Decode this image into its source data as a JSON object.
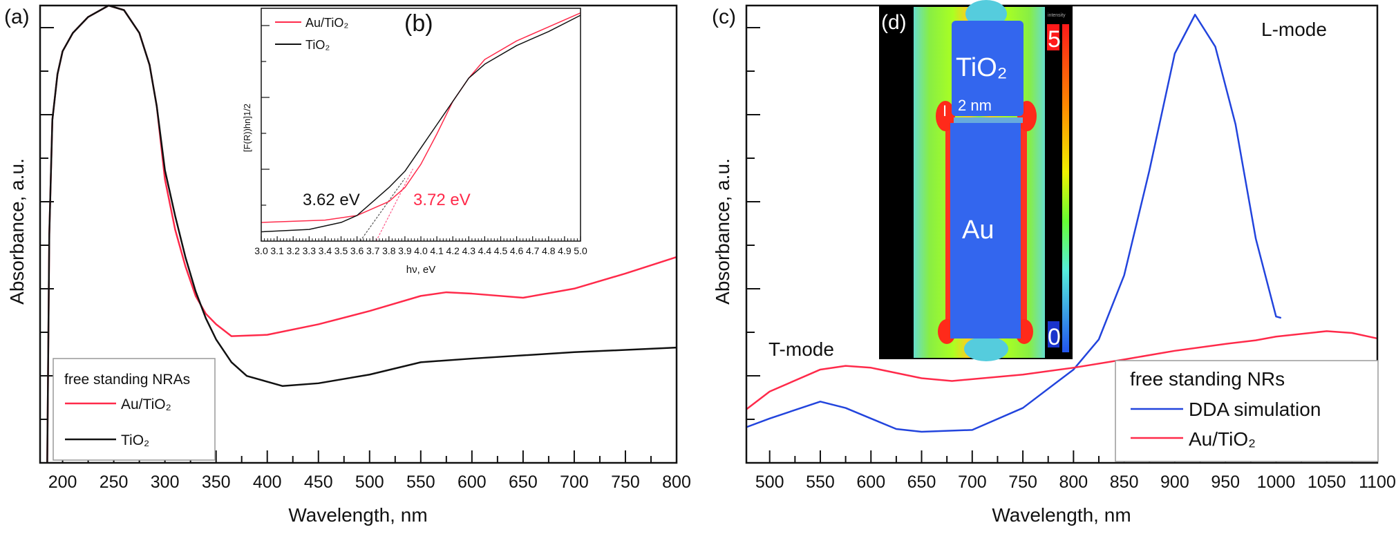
{
  "chart_data": [
    {
      "panel": "(a)",
      "type": "line",
      "xlabel": "Wavelength, nm",
      "ylabel": "Absorbance, a.u.",
      "xlim": [
        178,
        800
      ],
      "ylim": [
        0,
        1
      ],
      "x_ticks": [
        "200",
        "250",
        "300",
        "350",
        "400",
        "450",
        "500",
        "550",
        "600",
        "650",
        "700",
        "750",
        "800"
      ],
      "grid": false,
      "legend": {
        "title": "free standing NRAs",
        "placement": "bottom-left"
      },
      "series": [
        {
          "name": "Au/TiO₂",
          "color": "#ff2a4a",
          "points": [
            [
              185,
              0
            ],
            [
              187,
              0.5
            ],
            [
              190,
              0.75
            ],
            [
              195,
              0.85
            ],
            [
              200,
              0.9
            ],
            [
              210,
              0.94
            ],
            [
              225,
              0.975
            ],
            [
              245,
              1.0
            ],
            [
              260,
              0.99
            ],
            [
              275,
              0.94
            ],
            [
              285,
              0.87
            ],
            [
              292,
              0.78
            ],
            [
              300,
              0.62
            ],
            [
              310,
              0.51
            ],
            [
              320,
              0.43
            ],
            [
              330,
              0.365
            ],
            [
              340,
              0.326
            ],
            [
              350,
              0.303
            ],
            [
              365,
              0.277
            ],
            [
              400,
              0.28
            ],
            [
              450,
              0.303
            ],
            [
              500,
              0.332
            ],
            [
              550,
              0.365
            ],
            [
              575,
              0.373
            ],
            [
              600,
              0.37
            ],
            [
              650,
              0.361
            ],
            [
              700,
              0.381
            ],
            [
              750,
              0.414
            ],
            [
              800,
              0.45
            ]
          ]
        },
        {
          "name": "TiO₂",
          "color": "#111111",
          "points": [
            [
              185,
              0
            ],
            [
              187,
              0.5
            ],
            [
              190,
              0.75
            ],
            [
              195,
              0.85
            ],
            [
              200,
              0.9
            ],
            [
              210,
              0.94
            ],
            [
              225,
              0.975
            ],
            [
              245,
              1.0
            ],
            [
              260,
              0.99
            ],
            [
              275,
              0.94
            ],
            [
              285,
              0.87
            ],
            [
              292,
              0.78
            ],
            [
              300,
              0.64
            ],
            [
              310,
              0.54
            ],
            [
              320,
              0.45
            ],
            [
              330,
              0.375
            ],
            [
              340,
              0.316
            ],
            [
              350,
              0.27
            ],
            [
              365,
              0.22
            ],
            [
              380,
              0.19
            ],
            [
              415,
              0.168
            ],
            [
              450,
              0.174
            ],
            [
              500,
              0.193
            ],
            [
              550,
              0.22
            ],
            [
              600,
              0.228
            ],
            [
              700,
              0.242
            ],
            [
              800,
              0.252
            ]
          ]
        }
      ]
    },
    {
      "panel": "(b)",
      "type": "line",
      "inset": true,
      "xlabel": "hν, eV",
      "ylabel": "[F(R))hn]1/2",
      "xlim": [
        3.0,
        5.0
      ],
      "ylim": [
        0,
        1
      ],
      "x_ticks": [
        "3.0",
        "3.1",
        "3.2",
        "3.3",
        "3.4",
        "3.5",
        "3.6",
        "3.7",
        "3.8",
        "3.9",
        "4.0",
        "4.1",
        "4.2",
        "4.3",
        "4.4",
        "4.5",
        "4.6",
        "4.7",
        "4.8",
        "4.9",
        "5.0"
      ],
      "legend": {
        "placement": "top-left"
      },
      "series": [
        {
          "name": "Au/TiO₂",
          "color": "#ff2a4a",
          "points": [
            [
              3.0,
              0.08
            ],
            [
              3.4,
              0.09
            ],
            [
              3.6,
              0.11
            ],
            [
              3.7,
              0.14
            ],
            [
              3.8,
              0.17
            ],
            [
              3.9,
              0.23
            ],
            [
              4.0,
              0.33
            ],
            [
              4.1,
              0.46
            ],
            [
              4.2,
              0.6
            ],
            [
              4.3,
              0.7
            ],
            [
              4.4,
              0.78
            ],
            [
              4.6,
              0.86
            ],
            [
              4.8,
              0.92
            ],
            [
              5.0,
              0.98
            ]
          ]
        },
        {
          "name": "TiO₂",
          "color": "#111111",
          "points": [
            [
              3.0,
              0.04
            ],
            [
              3.3,
              0.05
            ],
            [
              3.5,
              0.08
            ],
            [
              3.6,
              0.11
            ],
            [
              3.7,
              0.17
            ],
            [
              3.8,
              0.23
            ],
            [
              3.9,
              0.3
            ],
            [
              4.0,
              0.4
            ],
            [
              4.1,
              0.5
            ],
            [
              4.2,
              0.6
            ],
            [
              4.3,
              0.7
            ],
            [
              4.4,
              0.76
            ],
            [
              4.6,
              0.84
            ],
            [
              4.8,
              0.9
            ],
            [
              5.0,
              0.97
            ]
          ]
        }
      ],
      "tangents": [
        {
          "color": "#555555",
          "points": [
            [
              3.62,
              0
            ],
            [
              3.9,
              0.27
            ]
          ]
        },
        {
          "color": "#ff5a8a",
          "points": [
            [
              3.72,
              0
            ],
            [
              3.95,
              0.31
            ]
          ]
        }
      ],
      "annotations": [
        {
          "text": "3.62 eV",
          "color": "#111111"
        },
        {
          "text": "3.72 eV",
          "color": "#ff2a4a"
        }
      ]
    },
    {
      "panel": "(c)",
      "type": "line",
      "xlabel": "Wavelength, nm",
      "ylabel": "Absorbance, a.u.",
      "xlim": [
        477,
        1100
      ],
      "ylim": [
        0,
        1
      ],
      "x_ticks": [
        "500",
        "550",
        "600",
        "650",
        "700",
        "750",
        "800",
        "850",
        "900",
        "950",
        "1000",
        "1050",
        "1100"
      ],
      "grid": false,
      "legend": {
        "title": "free standing NRs",
        "placement": "bottom-right"
      },
      "annotations": [
        {
          "text": "T-mode"
        },
        {
          "text": "L-mode"
        }
      ],
      "series": [
        {
          "name": "DDA simulation",
          "color": "#2244dd",
          "points": [
            [
              477,
              0.078
            ],
            [
              500,
              0.097
            ],
            [
              550,
              0.134
            ],
            [
              575,
              0.12
            ],
            [
              600,
              0.097
            ],
            [
              625,
              0.074
            ],
            [
              650,
              0.068
            ],
            [
              700,
              0.072
            ],
            [
              750,
              0.12
            ],
            [
              800,
              0.204
            ],
            [
              825,
              0.27
            ],
            [
              850,
              0.41
            ],
            [
              875,
              0.64
            ],
            [
              900,
              0.895
            ],
            [
              920,
              0.98
            ],
            [
              940,
              0.91
            ],
            [
              960,
              0.74
            ],
            [
              980,
              0.49
            ],
            [
              1000,
              0.32
            ],
            [
              1005,
              0.317
            ]
          ]
        },
        {
          "name": "Au/TiO₂",
          "color": "#ff2a4a",
          "points": [
            [
              477,
              0.117
            ],
            [
              500,
              0.156
            ],
            [
              550,
              0.204
            ],
            [
              575,
              0.212
            ],
            [
              600,
              0.208
            ],
            [
              650,
              0.185
            ],
            [
              680,
              0.179
            ],
            [
              750,
              0.193
            ],
            [
              800,
              0.208
            ],
            [
              850,
              0.226
            ],
            [
              900,
              0.245
            ],
            [
              950,
              0.26
            ],
            [
              980,
              0.268
            ],
            [
              1000,
              0.276
            ],
            [
              1050,
              0.288
            ],
            [
              1075,
              0.284
            ],
            [
              1100,
              0.272
            ]
          ]
        }
      ]
    }
  ],
  "inset_d": {
    "panel": "(d)",
    "labels": {
      "top": "TiO₂",
      "gap": "2 nm",
      "bottom": "Au"
    },
    "colorbar": {
      "title": "intensity",
      "max": "5",
      "min": "0"
    }
  }
}
